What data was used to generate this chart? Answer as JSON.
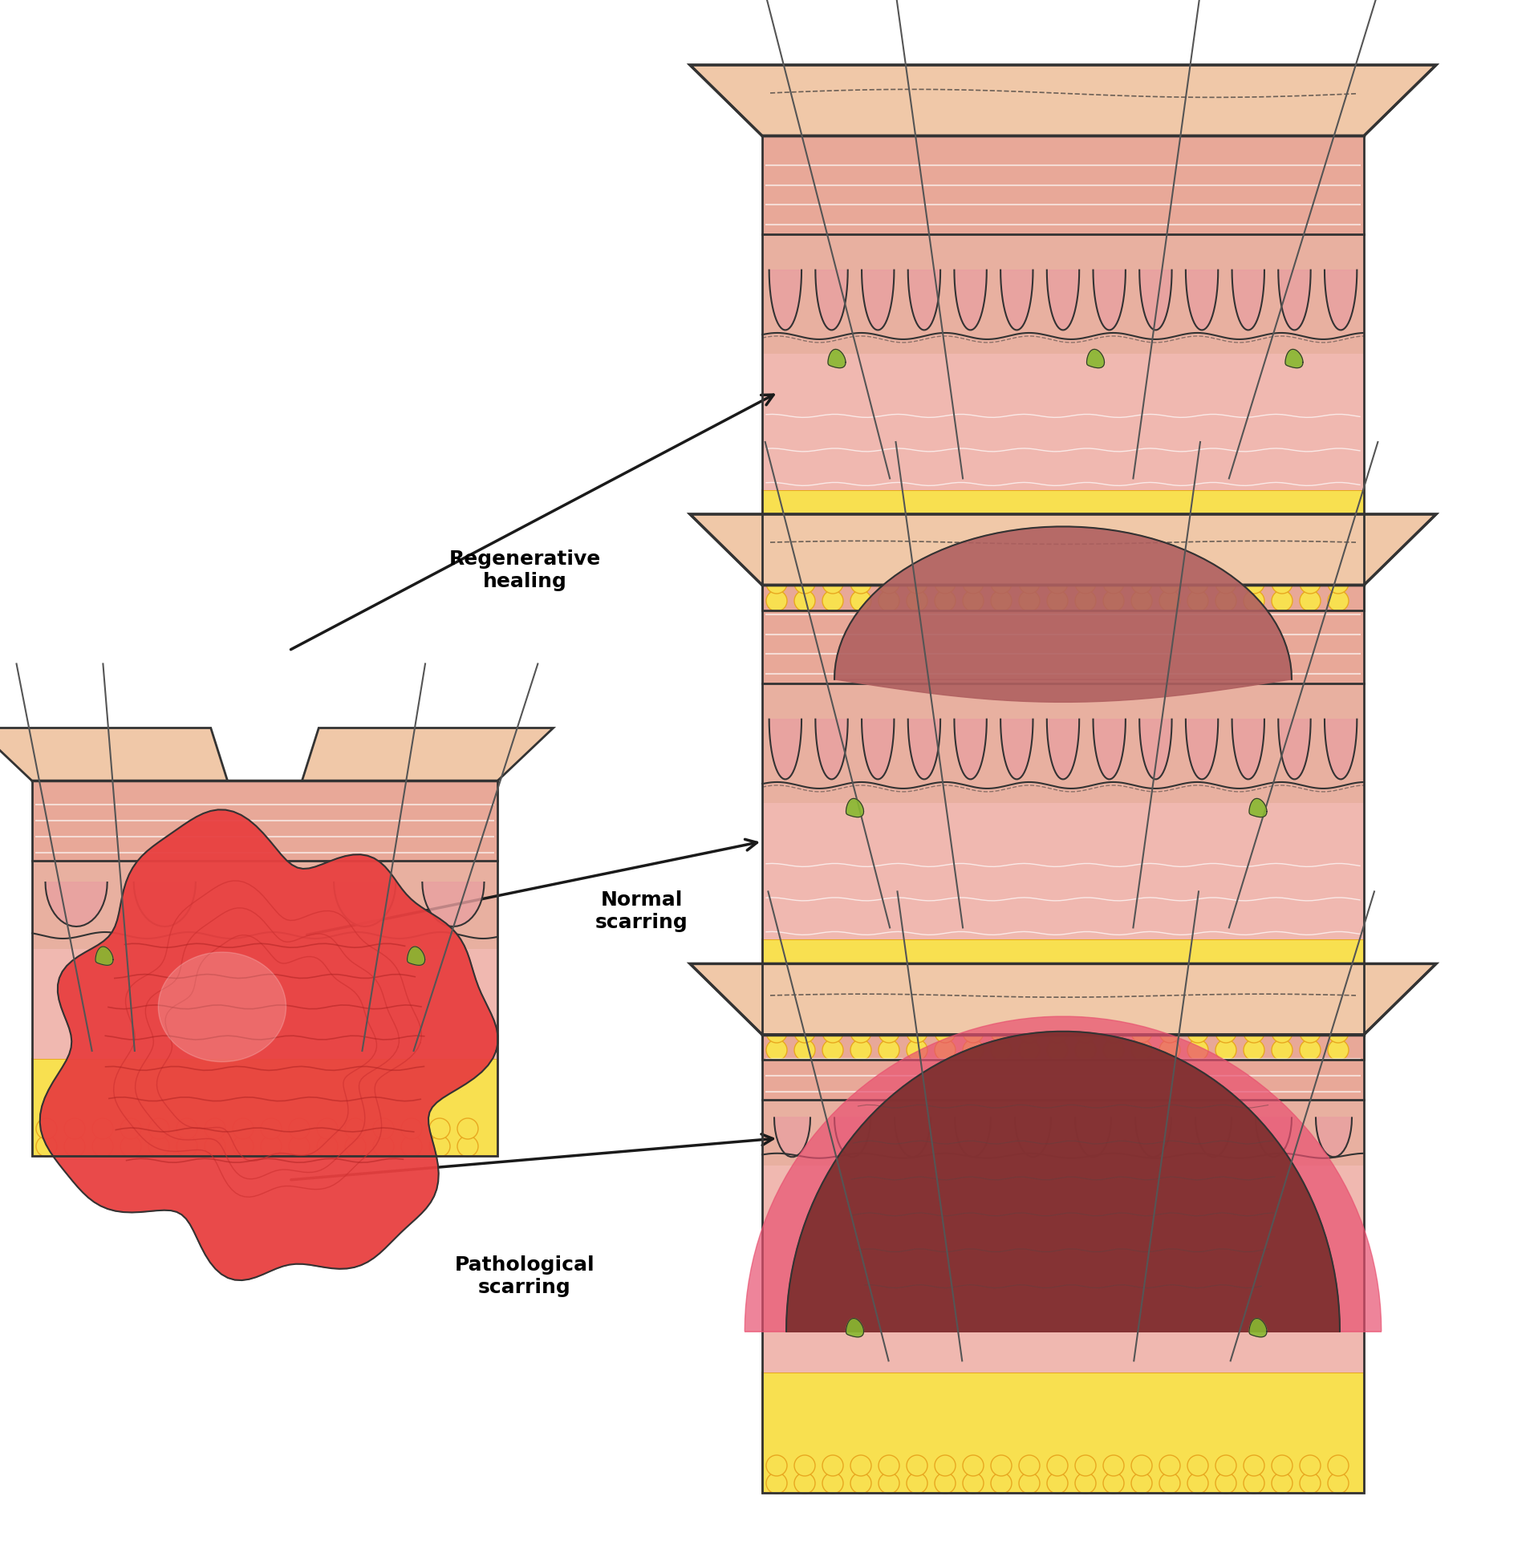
{
  "bg_color": "#ffffff",
  "skin_colors": {
    "epidermis_top": "#f0c8a8",
    "epidermis_stripe": "#e8a898",
    "dermis": "#f5d0c8",
    "dermis_layer": "#e8b0a0",
    "hypodermis": "#f8e870",
    "hypodermis_outline": "#e8a820",
    "fat_color": "#f8e050",
    "outline": "#333333",
    "hair_color": "#555555",
    "sebaceous_green": "#88b830",
    "wound_red": "#cc3030",
    "wound_red2": "#e84040",
    "scar_normal": "#b06060",
    "scar_pathological": "#803030",
    "scar_border_patho": "#e85070",
    "rete_pink": "#e8a0a0",
    "dermis_pink": "#f0b8b0"
  },
  "labels": {
    "regenerative": "Regenerative\nhealing",
    "normal": "Normal\nscarring",
    "pathological": "Pathological\nscarring"
  },
  "arrow_color": "#1a1a1a"
}
